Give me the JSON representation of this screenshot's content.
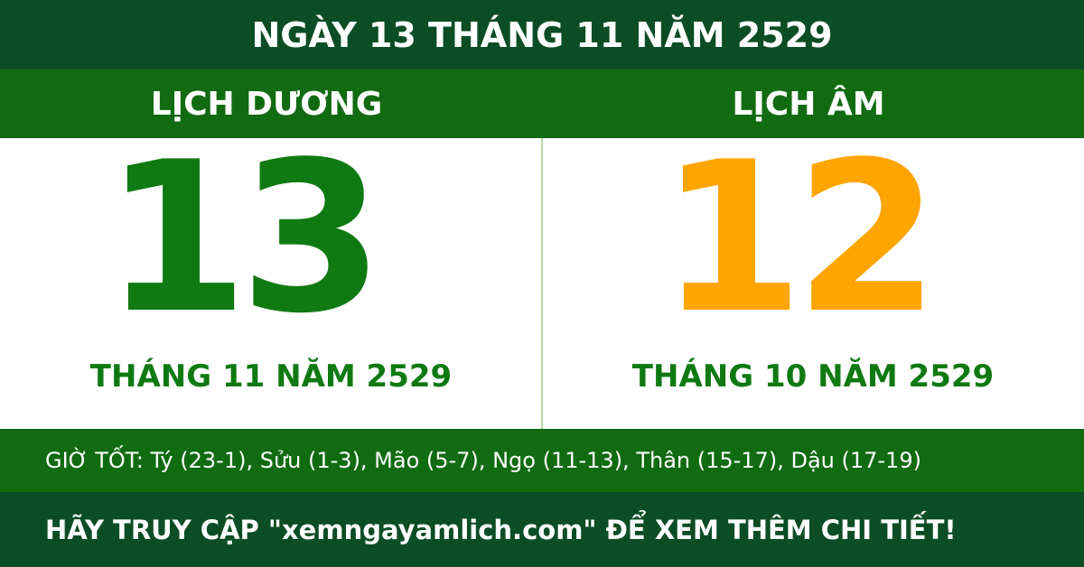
{
  "header": {
    "title": "NGÀY 13 THÁNG 11 NĂM 2529"
  },
  "solar": {
    "label": "LỊCH DƯƠNG",
    "day": "13",
    "month_year": "THÁNG 11 NĂM 2529"
  },
  "lunar": {
    "label": "LỊCH ÂM",
    "day": "12",
    "month_year": "THÁNG 10 NĂM 2529"
  },
  "good_hours": "GIỜ TỐT: Tý (23-1), Sửu (1-3), Mão (5-7), Ngọ (11-13), Thân (15-17), Dậu (17-19)",
  "footer": {
    "text": "HÃY TRUY CẬP \"xemngayamlich.com\" ĐỂ XEM THÊM CHI TIẾT!"
  }
}
